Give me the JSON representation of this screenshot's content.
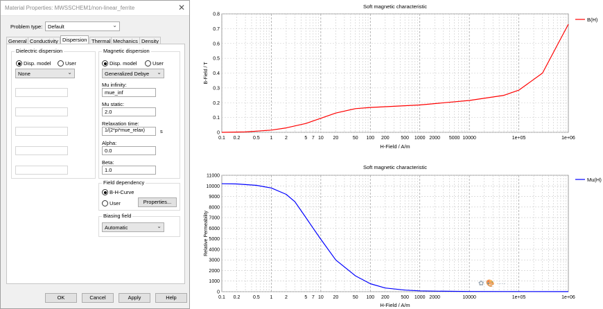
{
  "window": {
    "title": "Material Properties: MWSSCHEM1/non-linear_ferrite",
    "close_glyph": "✕"
  },
  "problem_type": {
    "label": "Problem type:",
    "value": "Default"
  },
  "tabs": [
    "General",
    "Conductivity",
    "Dispersion",
    "Thermal",
    "Mechanics",
    "Density"
  ],
  "active_tab": "Dispersion",
  "dielectric": {
    "title": "Dielectric dispersion",
    "radio_disp": "Disp. model",
    "radio_user": "User",
    "model": "None"
  },
  "magnetic": {
    "title": "Magnetic dispersion",
    "radio_disp": "Disp. model",
    "radio_user": "User",
    "model": "Generalized Debye",
    "mu_inf_label": "Mu infinity:",
    "mu_inf_value": "mue_inf",
    "mu_static_label": "Mu static:",
    "mu_static_value": "2.0",
    "relax_label": "Relaxation time:",
    "relax_value": "1/(2*pi*mue_relax)",
    "relax_unit": "s",
    "alpha_label": "Alpha:",
    "alpha_value": "0.0",
    "beta_label": "Beta:",
    "beta_value": "1.0"
  },
  "field_dependency": {
    "title": "Field dependency",
    "radio_bh": "B-H-Curve",
    "radio_user": "User",
    "properties_button": "Properties..."
  },
  "biasing": {
    "title": "Biasing field",
    "value": "Automatic"
  },
  "buttons": {
    "ok": "OK",
    "cancel": "Cancel",
    "apply": "Apply",
    "help": "Help"
  },
  "watermark": "✿ 🎨 ····",
  "colors": {
    "bh_curve": "#ff0000",
    "mu_curve": "#0000ff",
    "grid": "#c8c8c8"
  },
  "chart_data": [
    {
      "type": "line",
      "title": "Soft magnetic characteristic",
      "xlabel": "H-Field / A/m",
      "ylabel": "B-Field / T",
      "x_scale": "log",
      "xlim": [
        0.1,
        1000000
      ],
      "ylim": [
        0,
        0.8
      ],
      "x_ticks": [
        "0.1",
        "0.2",
        "0.5",
        "1",
        "2",
        "5",
        "7",
        "10",
        "20",
        "50",
        "100",
        "200",
        "500",
        "1000",
        "2000",
        "5000",
        "10000",
        "1e+05",
        "1e+06"
      ],
      "y_ticks": [
        "0",
        "0.1",
        "0.2",
        "0.3",
        "0.4",
        "0.5",
        "0.6",
        "0.7",
        "0.8"
      ],
      "legend": "top-right",
      "grid": true,
      "series": [
        {
          "name": "B(H)",
          "x": [
            0.1,
            0.3,
            0.5,
            1,
            2,
            5,
            10,
            20,
            50,
            100,
            1000,
            10000,
            50000,
            100000,
            300000,
            1000000
          ],
          "y": [
            0,
            0.003,
            0.008,
            0.015,
            0.03,
            0.06,
            0.095,
            0.13,
            0.16,
            0.168,
            0.185,
            0.215,
            0.25,
            0.285,
            0.4,
            0.73
          ]
        }
      ]
    },
    {
      "type": "line",
      "title": "Soft magnetic characteristic",
      "xlabel": "H-Field / A/m",
      "ylabel": "Relative Permeability",
      "x_scale": "log",
      "xlim": [
        0.1,
        1000000
      ],
      "ylim": [
        0,
        11000
      ],
      "x_ticks": [
        "0.1",
        "0.2",
        "0.5",
        "1",
        "2",
        "5",
        "7",
        "10",
        "20",
        "50",
        "100",
        "200",
        "500",
        "1000",
        "2000",
        "10000",
        "1e+05",
        "1e+06"
      ],
      "y_ticks": [
        "0",
        "1000",
        "2000",
        "3000",
        "4000",
        "5000",
        "6000",
        "7000",
        "8000",
        "9000",
        "10000",
        "11000"
      ],
      "legend": "top-right",
      "grid": true,
      "series": [
        {
          "name": "Mu(H)",
          "x": [
            0.1,
            0.2,
            0.5,
            1,
            2,
            3,
            5,
            7,
            10,
            20,
            50,
            100,
            200,
            500,
            1000,
            2000,
            10000,
            1000000
          ],
          "y": [
            10200,
            10180,
            10050,
            9800,
            9200,
            8500,
            7000,
            6000,
            4950,
            3000,
            1500,
            750,
            350,
            150,
            80,
            50,
            20,
            5
          ]
        }
      ]
    }
  ]
}
